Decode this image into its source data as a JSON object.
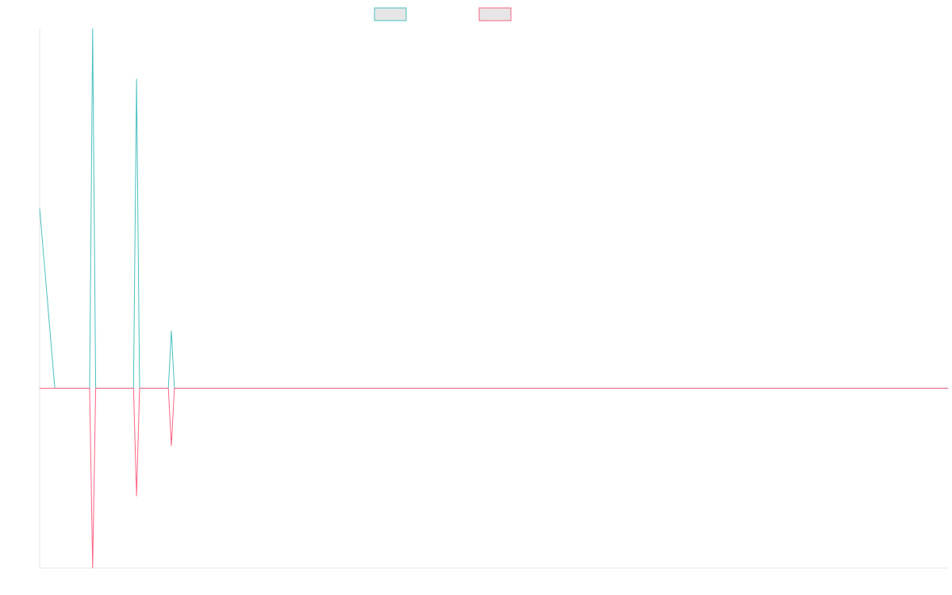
{
  "chart_data": {
    "type": "line",
    "title": "",
    "xlabel": "",
    "ylabel": "",
    "legend": {
      "position": "top-center",
      "entries": [
        "",
        ""
      ]
    },
    "grid": false,
    "x": [
      0,
      5,
      10,
      15,
      20,
      25,
      30,
      35,
      40,
      45,
      50,
      55,
      60,
      65,
      70,
      75,
      80,
      85,
      90,
      95,
      100,
      105,
      110,
      115,
      120,
      125,
      130,
      135,
      140,
      145,
      150,
      155,
      160,
      165,
      170,
      175,
      180,
      185,
      190,
      195,
      200,
      205,
      210,
      215,
      220,
      225,
      230,
      235,
      240,
      245,
      250,
      255,
      260,
      265,
      270,
      275,
      280,
      285,
      290,
      295,
      300
    ],
    "xlim": [
      0,
      300
    ],
    "ylim": [
      -100,
      200
    ],
    "series": [
      {
        "name": "",
        "color": "#4bc0c0",
        "values": [
          100,
          0,
          0,
          0,
          0,
          0,
          0,
          0,
          0,
          0,
          0,
          0,
          0,
          0,
          0,
          0,
          0,
          0,
          0,
          0,
          0,
          0,
          0,
          0,
          0,
          0,
          0,
          0,
          0,
          0,
          0,
          0,
          0,
          0,
          0,
          0,
          0,
          0,
          0,
          0,
          0,
          0,
          0,
          0,
          0,
          0,
          0,
          0,
          0,
          0,
          0,
          0,
          0,
          0,
          0,
          0,
          0,
          0,
          0,
          0,
          0
        ]
      },
      {
        "name": "",
        "color": "#ff6384",
        "values": [
          0,
          0,
          0,
          0,
          0,
          0,
          0,
          0,
          0,
          0,
          0,
          0,
          0,
          0,
          0,
          0,
          0,
          0,
          0,
          0,
          0,
          0,
          0,
          0,
          0,
          0,
          0,
          0,
          0,
          0,
          0,
          0,
          0,
          0,
          0,
          0,
          0,
          0,
          0,
          0,
          0,
          0,
          0,
          0,
          0,
          0,
          0,
          0,
          0,
          0,
          0,
          0,
          0,
          0,
          0,
          0,
          0,
          0,
          0,
          0,
          0
        ]
      }
    ],
    "spikes": [
      {
        "x": 17.5,
        "up": 200,
        "down": -100
      },
      {
        "x": 32,
        "up": 172,
        "down": -60
      },
      {
        "x": 43.5,
        "up": 32,
        "down": -32
      }
    ]
  }
}
